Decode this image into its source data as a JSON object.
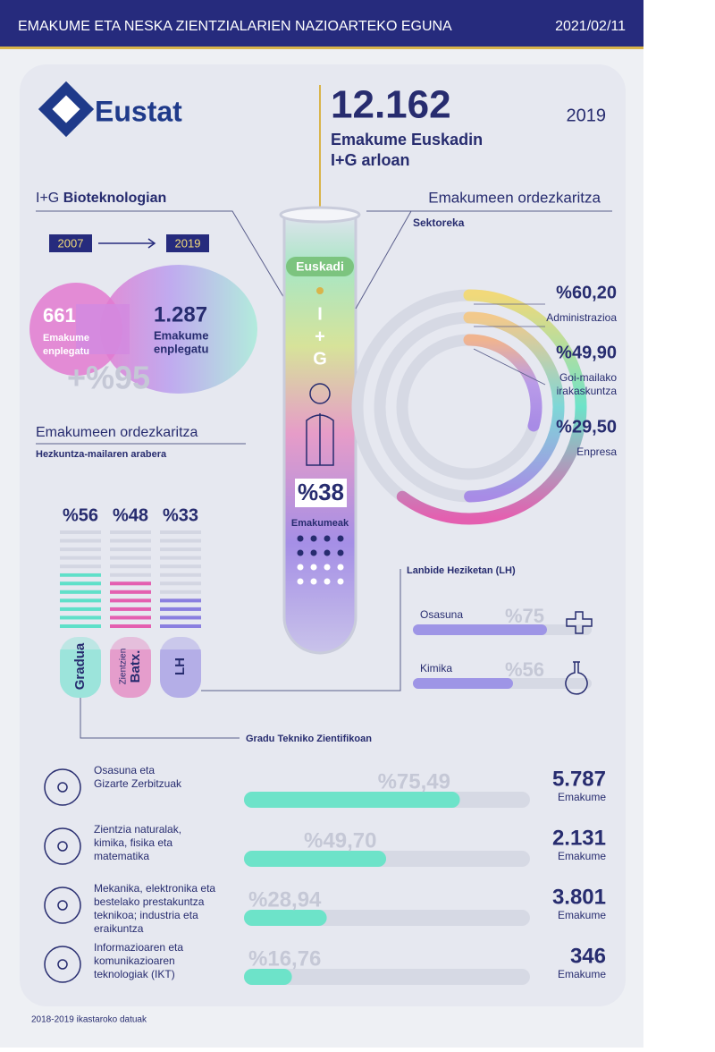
{
  "header": {
    "title": "EMAKUME ETA NESKA ZIENTZIALARIEN NAZIOARTEKO EGUNA",
    "date": "2021/02/11"
  },
  "logo": "Eustat",
  "headline": {
    "number": "12.162",
    "line1": "Emakume Euskadin",
    "line2": "I+G arloan",
    "year": "2019"
  },
  "biotech": {
    "title_prefix": "I+G",
    "title_bold": "Bioteknologian",
    "from_year": "2007",
    "to_year": "2019",
    "from": {
      "number": "661",
      "label": [
        "Emakume",
        "enplegatu"
      ]
    },
    "to": {
      "number": "1.287",
      "label": [
        "Emakume",
        "enplegatu"
      ]
    },
    "growth": "+%95"
  },
  "tube": {
    "label": "Euskadi",
    "letters": [
      "I",
      "+",
      "G"
    ],
    "percent": "%38",
    "caption": "Emakumeak"
  },
  "sector": {
    "title": "Emakumeen ordezkaritza",
    "subtitle": "Sektoreka",
    "items": [
      {
        "value": 60.2,
        "label": "%60,20",
        "name": [
          "Administrazioa"
        ],
        "color": "#f1d97a"
      },
      {
        "value": 49.9,
        "label": "%49,90",
        "name": [
          "Goi-mailako",
          "irakaskuntza"
        ],
        "color": "#f2c98c"
      },
      {
        "value": 29.5,
        "label": "%29,50",
        "name": [
          "Enpresa"
        ],
        "color": "#f0b48f"
      }
    ]
  },
  "education": {
    "title": "Emakumeen ordezkaritza",
    "subtitle": "Hezkuntza-mailaren arabera",
    "items": [
      {
        "value": 56,
        "label": "%56",
        "name": [
          "Gradua"
        ],
        "color": "#5fe0c9"
      },
      {
        "value": 48,
        "label": "%48",
        "name": [
          "Zientzien",
          "Batx."
        ],
        "color": "#e45fb0"
      },
      {
        "value": 33,
        "label": "%33",
        "name": [
          "LH"
        ],
        "color": "#8a7fe0"
      }
    ]
  },
  "vocational": {
    "title": "Lanbide Heziketan (LH)",
    "items": [
      {
        "name": "Osasuna",
        "value": 75,
        "label": "%75"
      },
      {
        "name": "Kimika",
        "value": 56,
        "label": "%56"
      }
    ]
  },
  "technical": {
    "title": "Gradu Tekniko Zientifikoan",
    "items": [
      {
        "name": [
          "Osasuna eta",
          "Gizarte Zerbitzuak"
        ],
        "value": 75.49,
        "label": "%75,49",
        "count": "5.787",
        "unit": "Emakume"
      },
      {
        "name": [
          "Zientzia naturalak,",
          "kimika, fisika eta",
          "matematika"
        ],
        "value": 49.7,
        "label": "%49,70",
        "count": "2.131",
        "unit": "Emakume"
      },
      {
        "name": [
          "Mekanika, elektronika eta",
          "bestelako prestakuntza",
          "teknikoa; industria eta",
          "eraikuntza"
        ],
        "value": 28.94,
        "label": "%28,94",
        "count": "3.801",
        "unit": "Emakume"
      },
      {
        "name": [
          "Informazioaren eta",
          "komunikazioaren",
          "teknologiak (IKT)"
        ],
        "value": 16.76,
        "label": "%16,76",
        "count": "346",
        "unit": "Emakume"
      }
    ]
  },
  "footnote": "2018-2019 ikastaroko datuak"
}
